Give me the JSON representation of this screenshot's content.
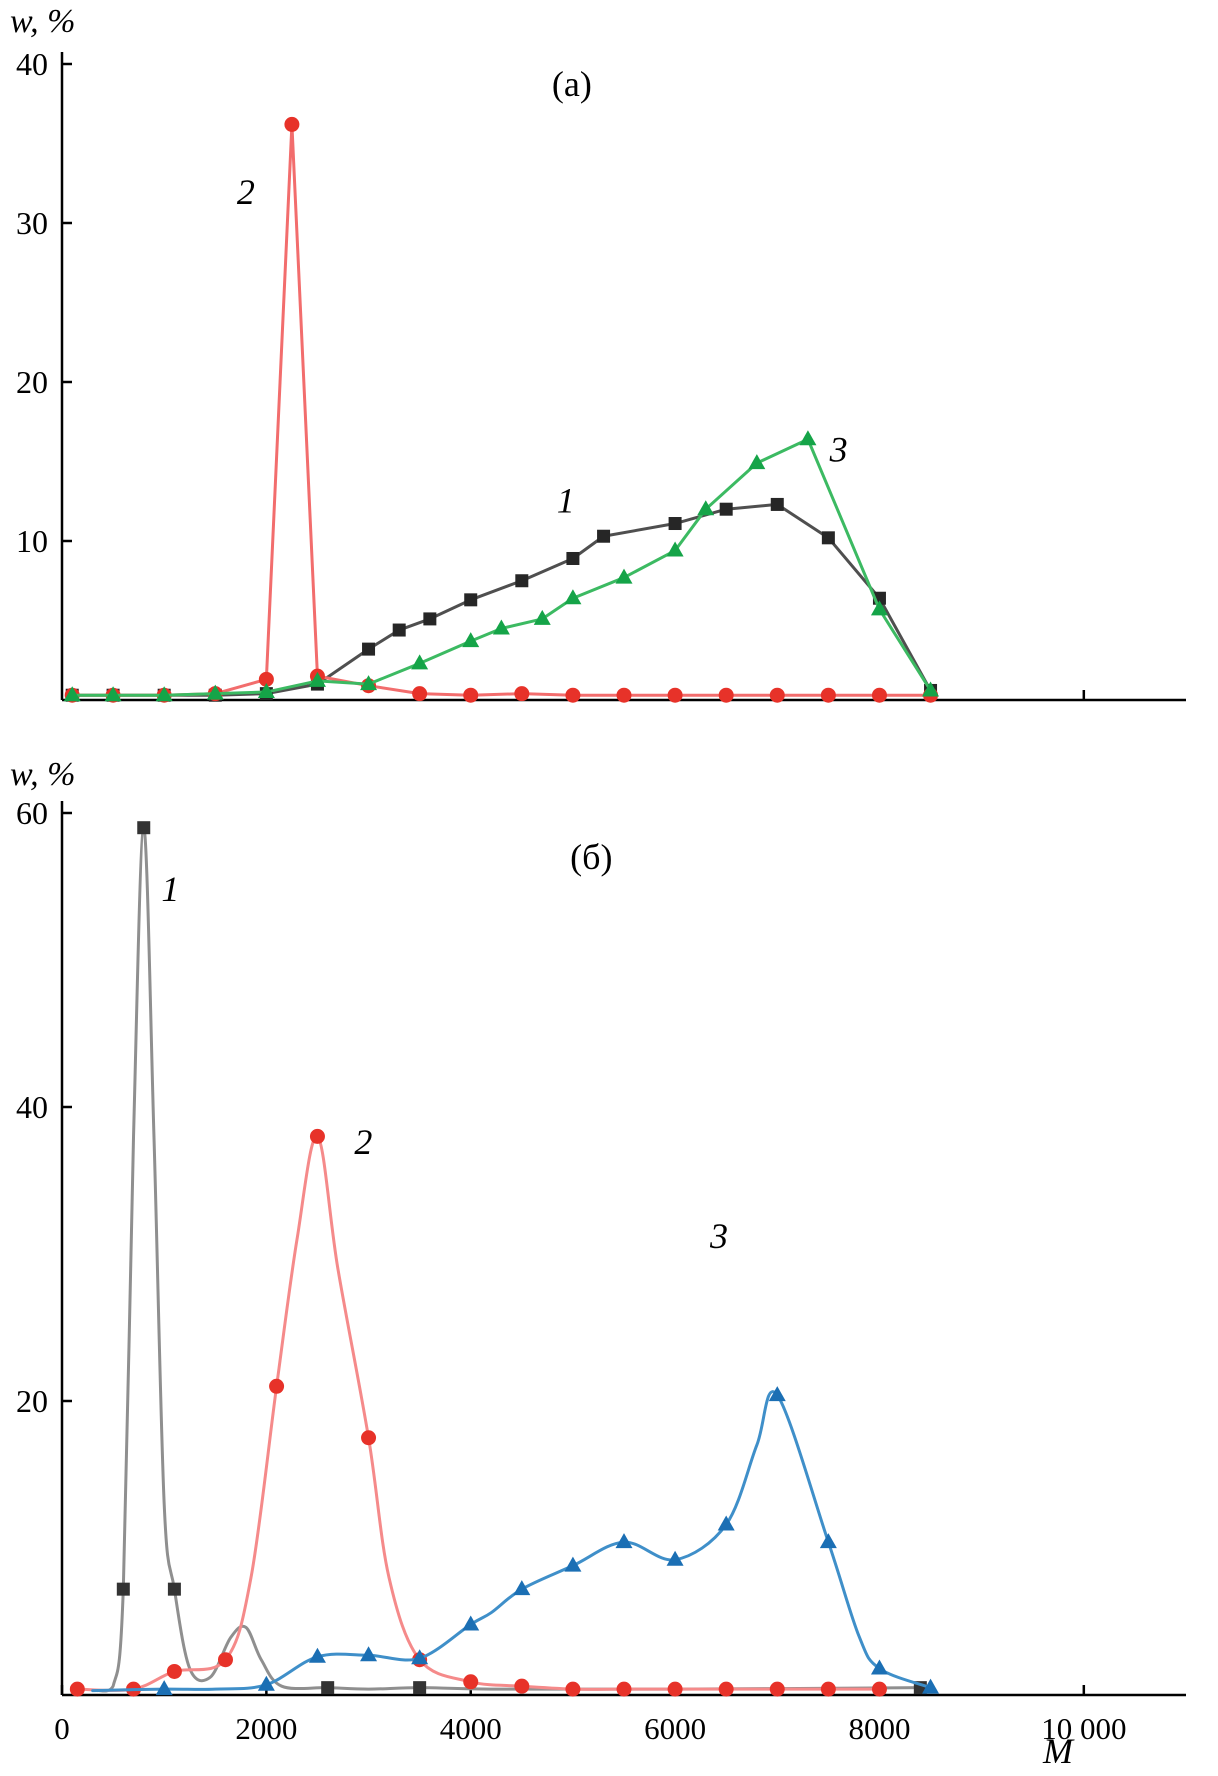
{
  "figure": {
    "background": "#ffffff",
    "axis_color": "#000000"
  },
  "chart_data": [
    {
      "type": "line",
      "panel_label": "(a)",
      "ylabel": "w, %",
      "xlabel": "",
      "xlim": [
        0,
        11000
      ],
      "ylim": [
        0,
        40
      ],
      "grid": false,
      "legend_position": "none",
      "yticks": {
        "values": [
          10,
          20,
          30,
          40
        ],
        "labels": [
          "10",
          "20",
          "30",
          "40"
        ]
      },
      "xticks": {
        "values": [
          2000,
          4000,
          6000,
          8000,
          10000
        ],
        "labels": [
          "",
          "",
          "",
          "",
          ""
        ]
      },
      "series": [
        {
          "name": "1",
          "marker": "square",
          "marker_color": "#262626",
          "line_color": "#4f4f4f",
          "smooth": false,
          "points": [
            [
              100,
              0.3
            ],
            [
              500,
              0.3
            ],
            [
              1000,
              0.3
            ],
            [
              1500,
              0.3
            ],
            [
              2000,
              0.4
            ],
            [
              2500,
              1.0
            ],
            [
              3000,
              3.2
            ],
            [
              3300,
              4.4
            ],
            [
              3600,
              5.1
            ],
            [
              4000,
              6.3
            ],
            [
              4500,
              7.5
            ],
            [
              5000,
              8.9
            ],
            [
              5300,
              10.3
            ],
            [
              6000,
              11.1
            ],
            [
              6500,
              12.0
            ],
            [
              7000,
              12.3
            ],
            [
              7500,
              10.2
            ],
            [
              8000,
              6.4
            ],
            [
              8500,
              0.6
            ]
          ]
        },
        {
          "name": "2",
          "marker": "circle",
          "marker_color": "#e73229",
          "line_color": "#f26d6d",
          "smooth": false,
          "points": [
            [
              100,
              0.3
            ],
            [
              500,
              0.3
            ],
            [
              1000,
              0.3
            ],
            [
              1500,
              0.4
            ],
            [
              2000,
              1.3
            ],
            [
              2250,
              36.2
            ],
            [
              2500,
              1.5
            ],
            [
              3000,
              0.9
            ],
            [
              3500,
              0.4
            ],
            [
              4000,
              0.3
            ],
            [
              4500,
              0.4
            ],
            [
              5000,
              0.3
            ],
            [
              5500,
              0.3
            ],
            [
              6000,
              0.3
            ],
            [
              6500,
              0.3
            ],
            [
              7000,
              0.3
            ],
            [
              7500,
              0.3
            ],
            [
              8000,
              0.3
            ],
            [
              8500,
              0.3
            ]
          ]
        },
        {
          "name": "3",
          "marker": "triangle",
          "marker_color": "#15a448",
          "line_color": "#3cba62",
          "smooth": false,
          "points": [
            [
              100,
              0.3
            ],
            [
              500,
              0.3
            ],
            [
              1000,
              0.3
            ],
            [
              1500,
              0.4
            ],
            [
              2000,
              0.5
            ],
            [
              2500,
              1.2
            ],
            [
              3000,
              1.0
            ],
            [
              3500,
              2.3
            ],
            [
              4000,
              3.7
            ],
            [
              4300,
              4.5
            ],
            [
              4700,
              5.1
            ],
            [
              5000,
              6.4
            ],
            [
              5500,
              7.7
            ],
            [
              6000,
              9.4
            ],
            [
              6300,
              12.0
            ],
            [
              6800,
              14.9
            ],
            [
              7300,
              16.4
            ],
            [
              8000,
              5.7
            ],
            [
              8500,
              0.6
            ]
          ]
        }
      ],
      "annotations": [
        {
          "text": "(a)",
          "x": 4990,
          "y": 38.0,
          "italic": false,
          "size": 36
        },
        {
          "text": "2",
          "x": 1800,
          "y": 31.2,
          "italic": true,
          "size": 36
        },
        {
          "text": "1",
          "x": 4930,
          "y": 11.8,
          "italic": true,
          "size": 36
        },
        {
          "text": "3",
          "x": 7600,
          "y": 15.0,
          "italic": true,
          "size": 36
        }
      ]
    },
    {
      "type": "line",
      "panel_label": "(б)",
      "ylabel": "w, %",
      "xlabel": "M",
      "xlim": [
        0,
        11000
      ],
      "ylim": [
        0,
        60
      ],
      "grid": false,
      "legend_position": "none",
      "yticks": {
        "values": [
          20,
          40,
          60
        ],
        "labels": [
          "20",
          "40",
          "60"
        ]
      },
      "xticks": {
        "values": [
          0,
          2000,
          4000,
          6000,
          8000,
          10000
        ],
        "labels": [
          "0",
          "2000",
          "4000",
          "6000",
          "8000",
          "10 000"
        ]
      },
      "series": [
        {
          "name": "1",
          "marker": "square",
          "marker_color": "#333333",
          "line_color": "#8f8f8f",
          "smooth": true,
          "points": [
            [
              600,
              7.2
            ],
            [
              800,
              59.0
            ],
            [
              1100,
              7.2
            ],
            [
              2600,
              0.5
            ],
            [
              3500,
              0.5
            ],
            [
              8400,
              0.5
            ]
          ],
          "line_extra": [
            [
              350,
              0.3
            ],
            [
              500,
              0.6
            ],
            [
              700,
              38.0
            ],
            [
              900,
              38.0
            ],
            [
              1000,
              13.0
            ],
            [
              1250,
              1.8
            ],
            [
              1450,
              1.2
            ],
            [
              1650,
              3.9
            ],
            [
              1800,
              4.6
            ],
            [
              1950,
              2.4
            ],
            [
              2150,
              0.6
            ],
            [
              3000,
              0.4
            ],
            [
              4200,
              0.4
            ],
            [
              6000,
              0.4
            ]
          ]
        },
        {
          "name": "2",
          "marker": "circle",
          "marker_color": "#e73229",
          "line_color": "#f58a8a",
          "smooth": true,
          "points": [
            [
              150,
              0.4
            ],
            [
              700,
              0.4
            ],
            [
              1100,
              1.6
            ],
            [
              1600,
              2.4
            ],
            [
              2100,
              21.0
            ],
            [
              2500,
              38.0
            ],
            [
              3000,
              17.5
            ],
            [
              3500,
              2.4
            ],
            [
              4000,
              0.9
            ],
            [
              4500,
              0.6
            ],
            [
              5000,
              0.4
            ],
            [
              5500,
              0.4
            ],
            [
              6000,
              0.4
            ],
            [
              6500,
              0.4
            ],
            [
              7000,
              0.4
            ],
            [
              7500,
              0.4
            ],
            [
              8000,
              0.4
            ]
          ],
          "line_extra": [
            [
              1850,
              8.0
            ],
            [
              2300,
              31.0
            ],
            [
              2700,
              29.0
            ],
            [
              3200,
              8.0
            ]
          ]
        },
        {
          "name": "3",
          "marker": "triangle",
          "marker_color": "#1b6fb4",
          "line_color": "#3f8fc9",
          "smooth": true,
          "points": [
            [
              1000,
              0.4
            ],
            [
              2000,
              0.7
            ],
            [
              2500,
              2.6
            ],
            [
              3000,
              2.7
            ],
            [
              3500,
              2.5
            ],
            [
              4000,
              4.8
            ],
            [
              4500,
              7.2
            ],
            [
              5000,
              8.8
            ],
            [
              5500,
              10.4
            ],
            [
              6000,
              9.2
            ],
            [
              6500,
              11.6
            ],
            [
              7000,
              20.4
            ],
            [
              7500,
              10.4
            ],
            [
              8000,
              1.8
            ],
            [
              8500,
              0.5
            ]
          ],
          "line_extra": [
            [
              300,
              0.3
            ],
            [
              1500,
              0.4
            ],
            [
              4200,
              5.6
            ],
            [
              6800,
              17.0
            ],
            [
              7800,
              4.0
            ]
          ]
        }
      ],
      "annotations": [
        {
          "text": "(б)",
          "x": 5180,
          "y": 56.2,
          "italic": false,
          "size": 36
        },
        {
          "text": "1",
          "x": 1060,
          "y": 54.0,
          "italic": true,
          "size": 36
        },
        {
          "text": "2",
          "x": 2950,
          "y": 36.8,
          "italic": true,
          "size": 36
        },
        {
          "text": "3",
          "x": 6430,
          "y": 30.4,
          "italic": true,
          "size": 36
        }
      ]
    }
  ]
}
